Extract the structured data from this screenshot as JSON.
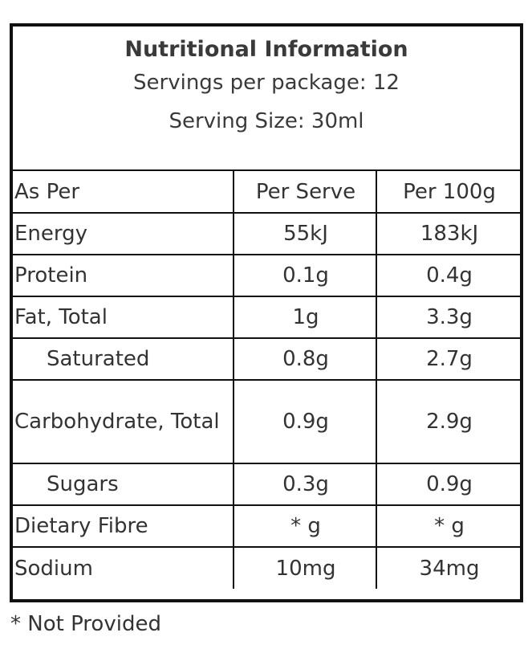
{
  "header": {
    "title": "Nutritional Information",
    "servings_per_package": "Servings per package: 12",
    "serving_size": "Serving Size: 30ml"
  },
  "table": {
    "columns": [
      "As Per",
      "Per Serve",
      "Per 100g"
    ],
    "rows": [
      {
        "label": "Energy",
        "per_serve": "55kJ",
        "per_100g": "183kJ",
        "indent": false
      },
      {
        "label": "Protein",
        "per_serve": "0.1g",
        "per_100g": "0.4g",
        "indent": false
      },
      {
        "label": "Fat, Total",
        "per_serve": "1g",
        "per_100g": "3.3g",
        "indent": false
      },
      {
        "label": "Saturated",
        "per_serve": "0.8g",
        "per_100g": "2.7g",
        "indent": true
      },
      {
        "label": "Carbohydrate, Total",
        "per_serve": "0.9g",
        "per_100g": "2.9g",
        "indent": false
      },
      {
        "label": "Sugars",
        "per_serve": "0.3g",
        "per_100g": "0.9g",
        "indent": true
      },
      {
        "label": "Dietary Fibre",
        "per_serve": "* g",
        "per_100g": "* g",
        "indent": false
      },
      {
        "label": "Sodium",
        "per_serve": "10mg",
        "per_100g": "34mg",
        "indent": false
      }
    ]
  },
  "footnote": "* Not Provided"
}
